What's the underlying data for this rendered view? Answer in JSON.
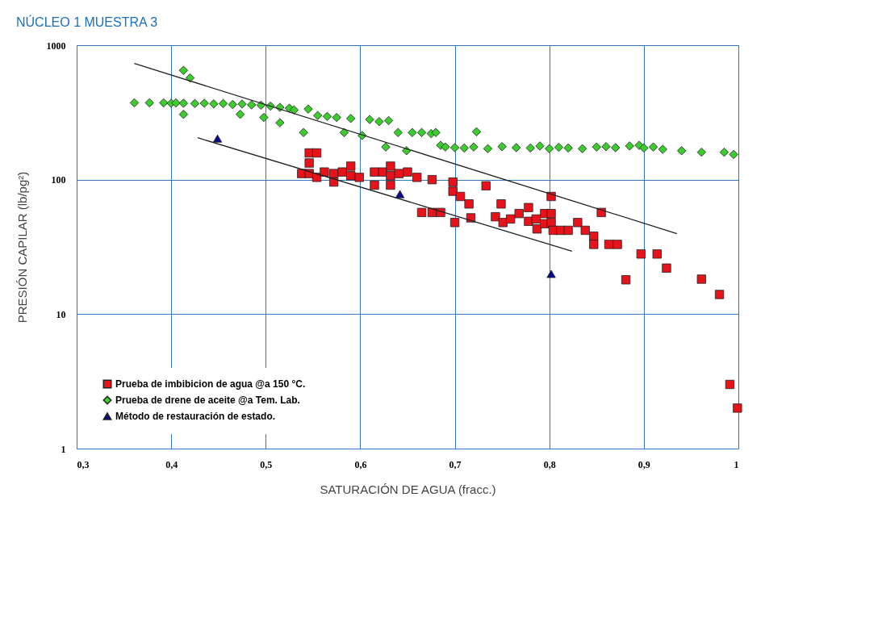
{
  "chart_data": {
    "type": "scatter",
    "title": "NÚCLEO 1 MUESTRA   3",
    "xlabel": "SATURACIÓN DE AGUA (fracc.)",
    "ylabel": "PRESIÓN CAPILAR (lb/pg²)",
    "xlim": [
      0.3,
      1.0
    ],
    "ylim": [
      1,
      1000
    ],
    "log": "y",
    "grid": true,
    "legend": "bottom left",
    "xticks": [
      {
        "value": 0.3,
        "label": "0,3"
      },
      {
        "value": 0.4,
        "label": "0,4"
      },
      {
        "value": 0.5,
        "label": "0,5"
      },
      {
        "value": 0.6,
        "label": "0,6"
      },
      {
        "value": 0.7,
        "label": "0,7"
      },
      {
        "value": 0.8,
        "label": "0,8"
      },
      {
        "value": 0.9,
        "label": "0,9"
      },
      {
        "value": 1.0,
        "label": "1"
      }
    ],
    "yticks": [
      1,
      10,
      100,
      1000
    ],
    "series": [
      {
        "name": "Prueba de imbibicion de agua @a 150 °C.",
        "marker": "square",
        "color": "#e8121b",
        "x": [
          0.546,
          0.554,
          0.546,
          0.538,
          0.546,
          0.554,
          0.562,
          0.572,
          0.572,
          0.581,
          0.59,
          0.59,
          0.599,
          0.615,
          0.615,
          0.624,
          0.632,
          0.632,
          0.632,
          0.641,
          0.65,
          0.66,
          0.676,
          0.698,
          0.698,
          0.706,
          0.715,
          0.733,
          0.802,
          0.855,
          0.665,
          0.676,
          0.685,
          0.7,
          0.717,
          0.749,
          0.743,
          0.751,
          0.759,
          0.768,
          0.778,
          0.778,
          0.786,
          0.787,
          0.795,
          0.795,
          0.802,
          0.802,
          0.804,
          0.812,
          0.82,
          0.83,
          0.838,
          0.847,
          0.847,
          0.863,
          0.872,
          0.897,
          0.914,
          0.924,
          0.881,
          0.961,
          0.98,
          0.991,
          0.999
        ],
        "values": [
          158,
          158,
          133,
          111,
          111,
          104,
          114,
          111,
          96,
          114,
          126,
          107,
          104,
          114,
          91,
          114,
          126,
          107,
          91,
          111,
          114,
          104,
          100,
          96,
          82,
          75,
          66,
          90,
          75,
          57,
          57,
          57,
          57,
          48,
          52,
          66,
          53,
          48,
          51,
          56,
          62,
          49,
          51,
          43,
          56,
          47,
          56,
          48,
          42,
          42,
          42,
          48,
          42,
          38,
          33,
          33,
          33,
          28,
          28,
          22,
          18,
          18.2,
          14,
          3,
          2
        ]
      },
      {
        "name": "Prueba de drene de aceite @a Tem. Lab.",
        "marker": "diamond",
        "color": "#3ccc2e",
        "x": [
          0.361,
          0.377,
          0.392,
          0.4,
          0.405,
          0.413,
          0.42,
          0.413,
          0.413,
          0.425,
          0.435,
          0.445,
          0.455,
          0.465,
          0.473,
          0.475,
          0.485,
          0.495,
          0.498,
          0.505,
          0.515,
          0.515,
          0.525,
          0.53,
          0.54,
          0.545,
          0.555,
          0.565,
          0.575,
          0.583,
          0.59,
          0.602,
          0.61,
          0.62,
          0.627,
          0.63,
          0.64,
          0.649,
          0.655,
          0.665,
          0.675,
          0.68,
          0.685,
          0.69,
          0.7,
          0.71,
          0.723,
          0.72,
          0.735,
          0.75,
          0.765,
          0.78,
          0.79,
          0.8,
          0.81,
          0.82,
          0.835,
          0.85,
          0.86,
          0.87,
          0.885,
          0.895,
          0.9,
          0.91,
          0.92,
          0.94,
          0.961,
          0.985,
          0.995
        ],
        "values": [
          373,
          373,
          373,
          370,
          372,
          650,
          571,
          306,
          370,
          368,
          370,
          366,
          368,
          362,
          306,
          365,
          360,
          358,
          290,
          352,
          265,
          345,
          340,
          330,
          224,
          335,
          300,
          295,
          290,
          224,
          285,
          213,
          280,
          270,
          175,
          275,
          224,
          164,
          224,
          224,
          220,
          224,
          180,
          175,
          173,
          172,
          227,
          175,
          170,
          176,
          173,
          172,
          178,
          170,
          174,
          172,
          170,
          175,
          176,
          173,
          178,
          180,
          172,
          175,
          168,
          164,
          160,
          160,
          154
        ]
      },
      {
        "name": "Método de restauración de estado.",
        "marker": "triangle",
        "color": "#0a0a8c",
        "x": [
          0.449,
          0.642,
          0.802
        ],
        "values": [
          202,
          78,
          19.9
        ]
      },
      {
        "type": "line",
        "line_style": "solid",
        "color": "#222222",
        "x": [
          0.361,
          0.935
        ],
        "values": [
          731,
          39.7
        ]
      },
      {
        "type": "line",
        "line_style": "solid",
        "color": "#222222",
        "x": [
          0.428,
          0.824
        ],
        "values": [
          205,
          29.4
        ]
      }
    ]
  }
}
